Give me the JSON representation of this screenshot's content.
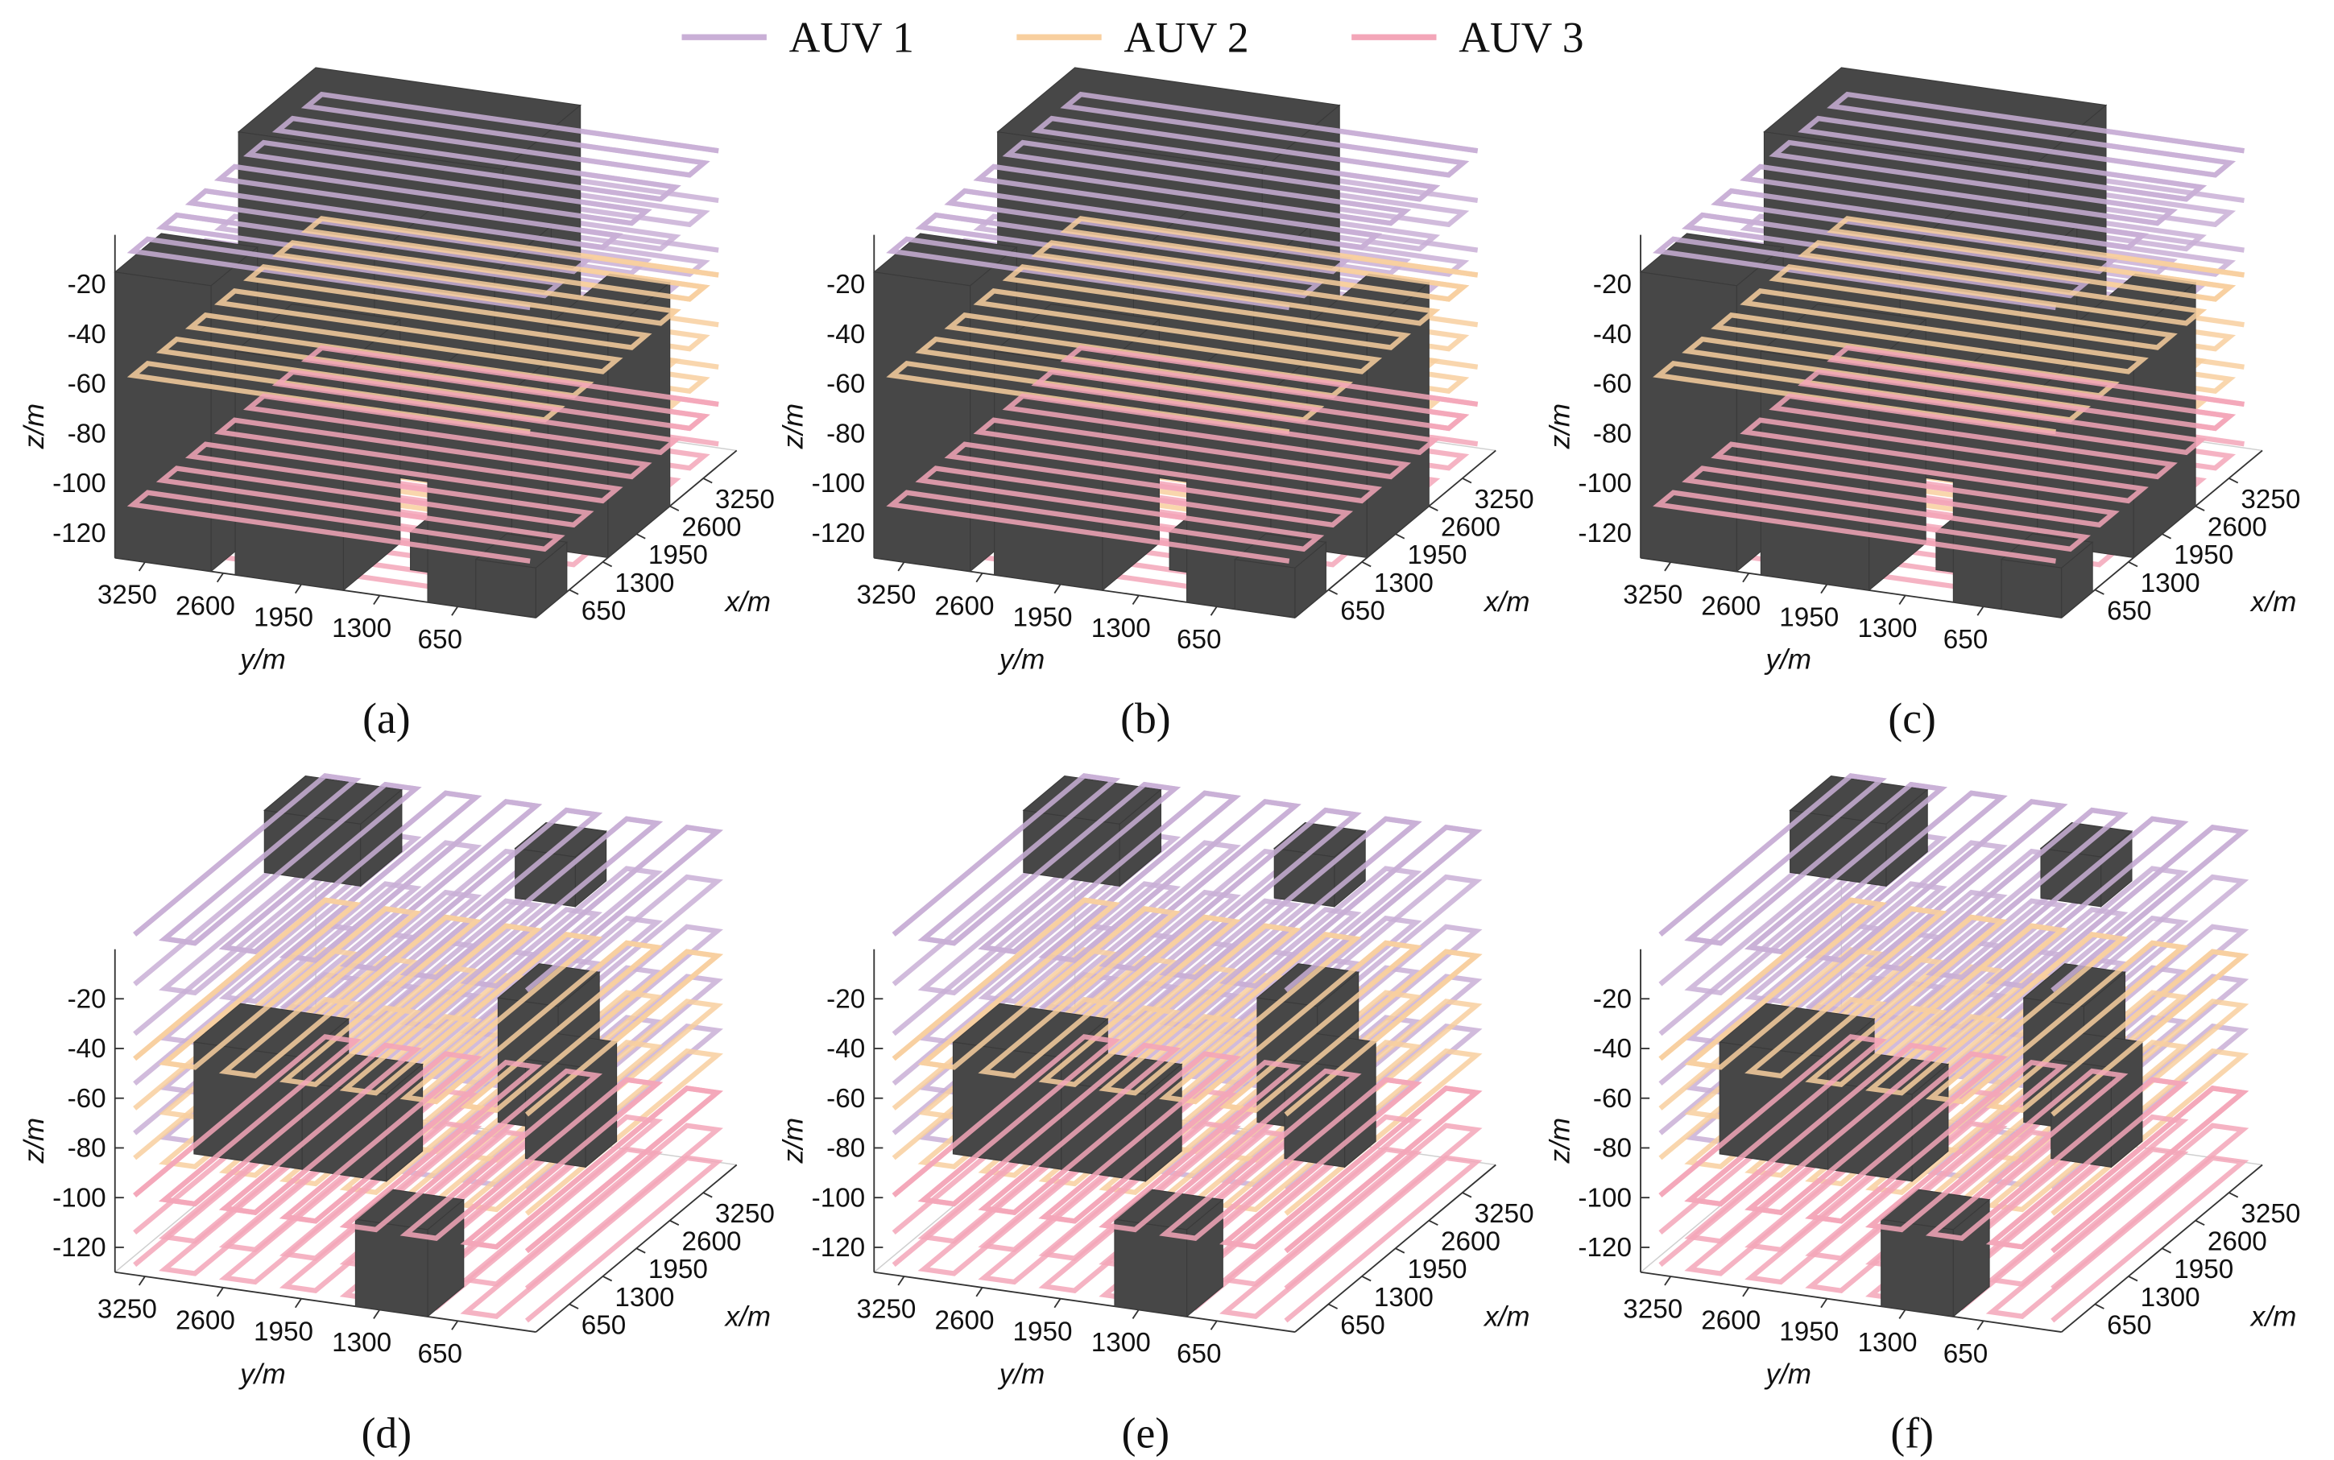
{
  "legend": {
    "series": [
      {
        "name": "AUV 1",
        "color": "#c9afd6"
      },
      {
        "name": "AUV 2",
        "color": "#f8cf9f"
      },
      {
        "name": "AUV 3",
        "color": "#f3a6b8"
      }
    ]
  },
  "chart_data": [
    {
      "type": "path3d",
      "caption": "(a)",
      "xlabel": "x/m",
      "ylabel": "y/m",
      "zlabel": "z/m",
      "xlim": [
        0,
        3900
      ],
      "ylim": [
        0,
        3500
      ],
      "zlim": [
        -130,
        0
      ],
      "xticks": [
        650,
        1300,
        1950,
        2600,
        3250
      ],
      "yticks": [
        3250,
        2600,
        1950,
        1300,
        650
      ],
      "zticks": [
        -20,
        -40,
        -60,
        -80,
        -100,
        -120
      ]
    },
    {
      "type": "path3d",
      "caption": "(b)",
      "xlabel": "x/m",
      "ylabel": "y/m",
      "zlabel": "z/m",
      "xlim": [
        0,
        3900
      ],
      "ylim": [
        0,
        3500
      ],
      "zlim": [
        -130,
        0
      ],
      "xticks": [
        650,
        1300,
        1950,
        2600,
        3250
      ],
      "yticks": [
        3250,
        2600,
        1950,
        1300,
        650
      ],
      "zticks": [
        -20,
        -40,
        -60,
        -80,
        -100,
        -120
      ]
    },
    {
      "type": "path3d",
      "caption": "(c)",
      "xlabel": "x/m",
      "ylabel": "y/m",
      "zlabel": "z/m",
      "xlim": [
        0,
        3900
      ],
      "ylim": [
        0,
        3500
      ],
      "zlim": [
        -130,
        0
      ],
      "xticks": [
        650,
        1300,
        1950,
        2600,
        3250
      ],
      "yticks": [
        3250,
        2600,
        1950,
        1300,
        650
      ],
      "zticks": [
        -20,
        -40,
        -60,
        -80,
        -100,
        -120
      ]
    },
    {
      "type": "path3d",
      "caption": "(d)",
      "xlabel": "x/m",
      "ylabel": "y/m",
      "zlabel": "z/m",
      "xlim": [
        0,
        3900
      ],
      "ylim": [
        0,
        3500
      ],
      "zlim": [
        -130,
        0
      ],
      "xticks": [
        650,
        1300,
        1950,
        2600,
        3250
      ],
      "yticks": [
        3250,
        2600,
        1950,
        1300,
        650
      ],
      "zticks": [
        -20,
        -40,
        -60,
        -80,
        -100,
        -120
      ]
    },
    {
      "type": "path3d",
      "caption": "(e)",
      "xlabel": "x/m",
      "ylabel": "y/m",
      "zlabel": "z/m",
      "xlim": [
        0,
        3900
      ],
      "ylim": [
        0,
        3500
      ],
      "zlim": [
        -130,
        0
      ],
      "xticks": [
        650,
        1300,
        1950,
        2600,
        3250
      ],
      "yticks": [
        3250,
        2600,
        1950,
        1300,
        650
      ],
      "zticks": [
        -20,
        -40,
        -60,
        -80,
        -100,
        -120
      ]
    },
    {
      "type": "path3d",
      "caption": "(f)",
      "xlabel": "x/m",
      "ylabel": "y/m",
      "zlabel": "z/m",
      "xlim": [
        0,
        3900
      ],
      "ylim": [
        0,
        3500
      ],
      "zlim": [
        -130,
        0
      ],
      "xticks": [
        650,
        1300,
        1950,
        2600,
        3250
      ],
      "yticks": [
        3250,
        2600,
        1950,
        1300,
        650
      ],
      "zticks": [
        -20,
        -40,
        -60,
        -80,
        -100,
        -120
      ]
    }
  ]
}
